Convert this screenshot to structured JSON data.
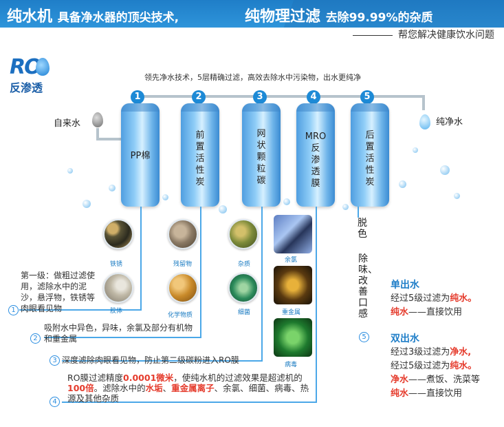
{
  "banner": {
    "part1_strong": "纯水机",
    "part1_rest": "具备净水器的顶尖技术,",
    "part2_strong": "纯物理过滤",
    "part2_rest": "去除99.99%的杂质",
    "subline": "帮您解决健康饮水问题"
  },
  "logo": {
    "letters": "RO",
    "text": "反渗透"
  },
  "intro": "领先净水技术，5层精确过滤，高效去除水中污染物，出水更纯净",
  "inlet_label": "自来水",
  "outlet_label": "纯净水",
  "filters": [
    {
      "num": "1",
      "label": "PP棉"
    },
    {
      "num": "2",
      "label": "前置活性炭"
    },
    {
      "num": "3",
      "label": "网状颗粒碳"
    },
    {
      "num": "4",
      "label_top": "MRO",
      "label": "反渗透膜"
    },
    {
      "num": "5",
      "label": "后置活性炭"
    }
  ],
  "impurities": {
    "col1": [
      "铁锈",
      "胶体"
    ],
    "col2": [
      "残留物",
      "化学物质"
    ],
    "col3": [
      "杂质",
      "细菌"
    ],
    "col4": [
      "余氯",
      "重金属",
      "病毒"
    ]
  },
  "steps": {
    "step1": {
      "num": "1",
      "text": "第一级：做粗过滤使用，滤除水中的泥沙，悬浮物，铁锈等肉眼看见物"
    },
    "step2": {
      "num": "2",
      "text": "吸附水中异色，异味，余氯及部分有机物和重金属"
    },
    "step3": {
      "num": "3",
      "text": "深度滤除肉眼看见物，防止第二级碳粉进入RO膜"
    },
    "step4": {
      "num": "4",
      "t1": "RO膜过滤精度",
      "h1": "0.0001微米",
      "t2": "，使纯水机的过滤效果是超滤机的",
      "h2": "100倍",
      "t3": "。滤除水中的",
      "h3": "水垢",
      "t4": "、",
      "h4": "重金属离子",
      "t5": "、余氯、细菌、病毒、热源及其他杂质"
    },
    "step5": {
      "num": "5",
      "benefit1": "脱色",
      "benefit2": "除味、改善口感"
    }
  },
  "single_out": {
    "title": "单出水",
    "line1_pre": "经过5级过滤为",
    "line1_hl": "纯水。",
    "line2_hl": "纯水",
    "line2_rest": "——直接饮用"
  },
  "double_out": {
    "title": "双出水",
    "line1_pre": "经过3级过滤为",
    "line1_hl": "净水,",
    "line2_pre": "经过5级过滤为",
    "line2_hl": "纯水。",
    "line3_hl": "净水",
    "line3_rest": "——煮饭、洗菜等",
    "line4_hl": "纯水",
    "line4_rest": "——直接饮用"
  },
  "colors": {
    "accent": "#1d8ad6",
    "highlight": "#e53b2c",
    "banner": "#2d93d9"
  }
}
